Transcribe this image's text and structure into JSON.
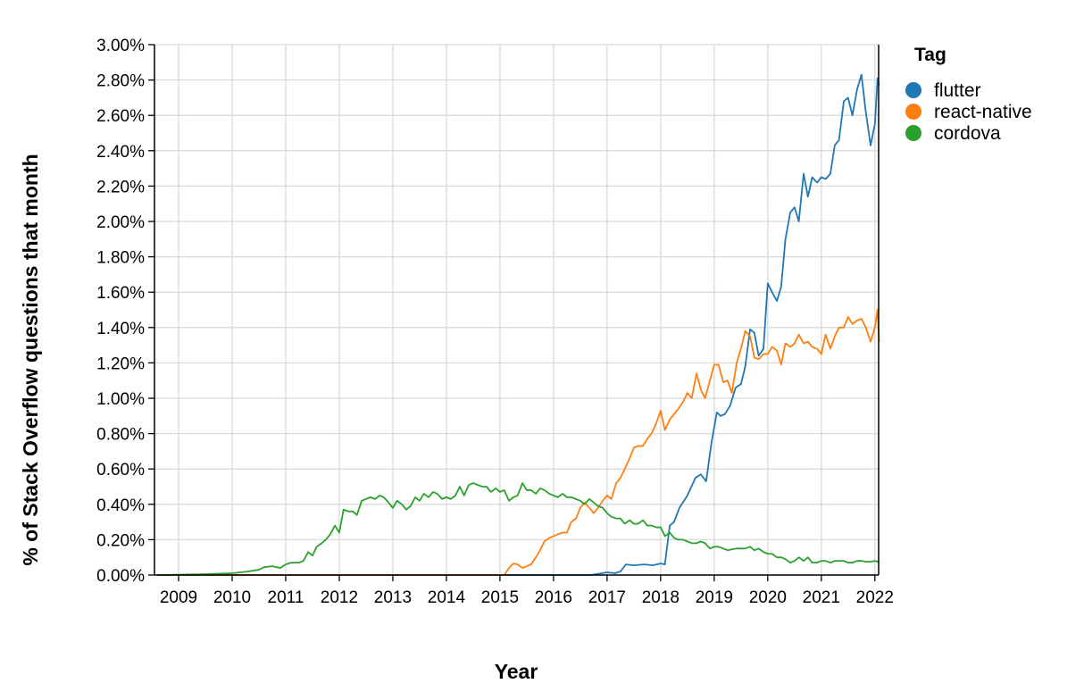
{
  "chart_data": {
    "type": "line",
    "title": "",
    "xlabel": "Year",
    "ylabel": "% of Stack Overflow questions that month",
    "xlim": [
      2008.55,
      2022.07
    ],
    "ylim": [
      0,
      3.0
    ],
    "x_ticks": [
      "2009",
      "2010",
      "2011",
      "2012",
      "2013",
      "2014",
      "2015",
      "2016",
      "2017",
      "2018",
      "2019",
      "2020",
      "2021",
      "2022"
    ],
    "y_ticks": [
      "0.00%",
      "0.20%",
      "0.40%",
      "0.60%",
      "0.80%",
      "1.00%",
      "1.20%",
      "1.40%",
      "1.60%",
      "1.80%",
      "2.00%",
      "2.20%",
      "2.40%",
      "2.60%",
      "2.80%",
      "3.00%"
    ],
    "grid": true,
    "legend": {
      "title": "Tag",
      "position": "right"
    },
    "series": [
      {
        "name": "flutter",
        "color": "#1f77b4",
        "points": [
          [
            2008.6,
            0.0
          ],
          [
            2016.7,
            0.0
          ],
          [
            2016.9,
            0.01
          ],
          [
            2017.0,
            0.015
          ],
          [
            2017.15,
            0.01
          ],
          [
            2017.25,
            0.02
          ],
          [
            2017.35,
            0.06
          ],
          [
            2017.5,
            0.055
          ],
          [
            2017.7,
            0.06
          ],
          [
            2017.85,
            0.055
          ],
          [
            2018.0,
            0.065
          ],
          [
            2018.08,
            0.06
          ],
          [
            2018.17,
            0.28
          ],
          [
            2018.25,
            0.3
          ],
          [
            2018.35,
            0.38
          ],
          [
            2018.5,
            0.45
          ],
          [
            2018.65,
            0.55
          ],
          [
            2018.75,
            0.57
          ],
          [
            2018.85,
            0.53
          ],
          [
            2018.95,
            0.75
          ],
          [
            2019.05,
            0.92
          ],
          [
            2019.12,
            0.9
          ],
          [
            2019.2,
            0.91
          ],
          [
            2019.3,
            0.96
          ],
          [
            2019.4,
            1.06
          ],
          [
            2019.5,
            1.08
          ],
          [
            2019.58,
            1.18
          ],
          [
            2019.67,
            1.39
          ],
          [
            2019.75,
            1.37
          ],
          [
            2019.83,
            1.24
          ],
          [
            2019.92,
            1.28
          ],
          [
            2020.0,
            1.65
          ],
          [
            2020.08,
            1.6
          ],
          [
            2020.17,
            1.55
          ],
          [
            2020.25,
            1.63
          ],
          [
            2020.33,
            1.9
          ],
          [
            2020.42,
            2.05
          ],
          [
            2020.5,
            2.08
          ],
          [
            2020.58,
            2.0
          ],
          [
            2020.67,
            2.27
          ],
          [
            2020.75,
            2.14
          ],
          [
            2020.83,
            2.25
          ],
          [
            2020.92,
            2.22
          ],
          [
            2021.0,
            2.25
          ],
          [
            2021.08,
            2.24
          ],
          [
            2021.17,
            2.27
          ],
          [
            2021.25,
            2.43
          ],
          [
            2021.33,
            2.46
          ],
          [
            2021.42,
            2.68
          ],
          [
            2021.5,
            2.7
          ],
          [
            2021.58,
            2.6
          ],
          [
            2021.67,
            2.75
          ],
          [
            2021.75,
            2.83
          ],
          [
            2021.83,
            2.62
          ],
          [
            2021.92,
            2.43
          ],
          [
            2022.0,
            2.55
          ],
          [
            2022.05,
            2.81
          ],
          [
            2022.08,
            2.77
          ]
        ]
      },
      {
        "name": "react-native",
        "color": "#ff7f0e",
        "points": [
          [
            2008.6,
            0.0
          ],
          [
            2015.08,
            0.0
          ],
          [
            2015.17,
            0.04
          ],
          [
            2015.25,
            0.065
          ],
          [
            2015.33,
            0.06
          ],
          [
            2015.42,
            0.04
          ],
          [
            2015.5,
            0.05
          ],
          [
            2015.58,
            0.06
          ],
          [
            2015.67,
            0.1
          ],
          [
            2015.75,
            0.14
          ],
          [
            2015.83,
            0.19
          ],
          [
            2015.92,
            0.21
          ],
          [
            2016.0,
            0.22
          ],
          [
            2016.08,
            0.23
          ],
          [
            2016.17,
            0.24
          ],
          [
            2016.25,
            0.24
          ],
          [
            2016.33,
            0.3
          ],
          [
            2016.42,
            0.32
          ],
          [
            2016.5,
            0.38
          ],
          [
            2016.58,
            0.41
          ],
          [
            2016.67,
            0.38
          ],
          [
            2016.75,
            0.35
          ],
          [
            2016.83,
            0.38
          ],
          [
            2016.92,
            0.42
          ],
          [
            2017.0,
            0.45
          ],
          [
            2017.08,
            0.43
          ],
          [
            2017.17,
            0.52
          ],
          [
            2017.25,
            0.55
          ],
          [
            2017.33,
            0.6
          ],
          [
            2017.42,
            0.66
          ],
          [
            2017.5,
            0.72
          ],
          [
            2017.58,
            0.73
          ],
          [
            2017.67,
            0.73
          ],
          [
            2017.75,
            0.77
          ],
          [
            2017.83,
            0.8
          ],
          [
            2017.92,
            0.86
          ],
          [
            2018.0,
            0.93
          ],
          [
            2018.08,
            0.82
          ],
          [
            2018.17,
            0.88
          ],
          [
            2018.25,
            0.91
          ],
          [
            2018.33,
            0.94
          ],
          [
            2018.42,
            0.98
          ],
          [
            2018.5,
            1.03
          ],
          [
            2018.58,
            1.0
          ],
          [
            2018.67,
            1.14
          ],
          [
            2018.75,
            1.05
          ],
          [
            2018.83,
            1.0
          ],
          [
            2018.92,
            1.1
          ],
          [
            2019.0,
            1.19
          ],
          [
            2019.08,
            1.19
          ],
          [
            2019.17,
            1.09
          ],
          [
            2019.25,
            1.1
          ],
          [
            2019.33,
            1.03
          ],
          [
            2019.42,
            1.2
          ],
          [
            2019.5,
            1.28
          ],
          [
            2019.58,
            1.38
          ],
          [
            2019.67,
            1.35
          ],
          [
            2019.75,
            1.23
          ],
          [
            2019.83,
            1.22
          ],
          [
            2019.92,
            1.25
          ],
          [
            2020.0,
            1.25
          ],
          [
            2020.08,
            1.29
          ],
          [
            2020.17,
            1.27
          ],
          [
            2020.25,
            1.19
          ],
          [
            2020.33,
            1.31
          ],
          [
            2020.42,
            1.29
          ],
          [
            2020.5,
            1.31
          ],
          [
            2020.58,
            1.36
          ],
          [
            2020.67,
            1.31
          ],
          [
            2020.75,
            1.32
          ],
          [
            2020.83,
            1.29
          ],
          [
            2020.92,
            1.28
          ],
          [
            2021.0,
            1.25
          ],
          [
            2021.08,
            1.36
          ],
          [
            2021.17,
            1.28
          ],
          [
            2021.25,
            1.35
          ],
          [
            2021.33,
            1.4
          ],
          [
            2021.42,
            1.4
          ],
          [
            2021.5,
            1.46
          ],
          [
            2021.58,
            1.42
          ],
          [
            2021.67,
            1.44
          ],
          [
            2021.75,
            1.45
          ],
          [
            2021.83,
            1.4
          ],
          [
            2021.92,
            1.32
          ],
          [
            2022.0,
            1.4
          ],
          [
            2022.05,
            1.5
          ],
          [
            2022.08,
            1.32
          ]
        ]
      },
      {
        "name": "cordova",
        "color": "#2ca02c",
        "points": [
          [
            2008.6,
            0.0
          ],
          [
            2009.5,
            0.005
          ],
          [
            2010.0,
            0.01
          ],
          [
            2010.3,
            0.02
          ],
          [
            2010.5,
            0.03
          ],
          [
            2010.6,
            0.045
          ],
          [
            2010.75,
            0.05
          ],
          [
            2010.9,
            0.04
          ],
          [
            2011.0,
            0.06
          ],
          [
            2011.1,
            0.07
          ],
          [
            2011.25,
            0.07
          ],
          [
            2011.33,
            0.08
          ],
          [
            2011.42,
            0.13
          ],
          [
            2011.5,
            0.11
          ],
          [
            2011.58,
            0.16
          ],
          [
            2011.67,
            0.18
          ],
          [
            2011.75,
            0.2
          ],
          [
            2011.83,
            0.23
          ],
          [
            2011.92,
            0.28
          ],
          [
            2012.0,
            0.24
          ],
          [
            2012.08,
            0.37
          ],
          [
            2012.17,
            0.36
          ],
          [
            2012.25,
            0.36
          ],
          [
            2012.33,
            0.34
          ],
          [
            2012.42,
            0.42
          ],
          [
            2012.5,
            0.43
          ],
          [
            2012.58,
            0.44
          ],
          [
            2012.67,
            0.43
          ],
          [
            2012.75,
            0.45
          ],
          [
            2012.83,
            0.44
          ],
          [
            2012.92,
            0.41
          ],
          [
            2013.0,
            0.38
          ],
          [
            2013.08,
            0.42
          ],
          [
            2013.17,
            0.4
          ],
          [
            2013.25,
            0.37
          ],
          [
            2013.33,
            0.39
          ],
          [
            2013.42,
            0.44
          ],
          [
            2013.5,
            0.42
          ],
          [
            2013.58,
            0.46
          ],
          [
            2013.67,
            0.44
          ],
          [
            2013.75,
            0.47
          ],
          [
            2013.83,
            0.46
          ],
          [
            2013.92,
            0.43
          ],
          [
            2014.0,
            0.44
          ],
          [
            2014.08,
            0.43
          ],
          [
            2014.17,
            0.45
          ],
          [
            2014.25,
            0.5
          ],
          [
            2014.33,
            0.45
          ],
          [
            2014.42,
            0.51
          ],
          [
            2014.5,
            0.52
          ],
          [
            2014.58,
            0.51
          ],
          [
            2014.67,
            0.5
          ],
          [
            2014.75,
            0.5
          ],
          [
            2014.83,
            0.47
          ],
          [
            2014.92,
            0.49
          ],
          [
            2015.0,
            0.47
          ],
          [
            2015.08,
            0.48
          ],
          [
            2015.17,
            0.42
          ],
          [
            2015.25,
            0.44
          ],
          [
            2015.33,
            0.45
          ],
          [
            2015.42,
            0.52
          ],
          [
            2015.5,
            0.48
          ],
          [
            2015.58,
            0.48
          ],
          [
            2015.67,
            0.46
          ],
          [
            2015.75,
            0.49
          ],
          [
            2015.83,
            0.48
          ],
          [
            2015.92,
            0.46
          ],
          [
            2016.0,
            0.45
          ],
          [
            2016.08,
            0.44
          ],
          [
            2016.17,
            0.46
          ],
          [
            2016.25,
            0.44
          ],
          [
            2016.33,
            0.44
          ],
          [
            2016.42,
            0.43
          ],
          [
            2016.5,
            0.42
          ],
          [
            2016.58,
            0.4
          ],
          [
            2016.67,
            0.43
          ],
          [
            2016.75,
            0.41
          ],
          [
            2016.83,
            0.39
          ],
          [
            2016.92,
            0.38
          ],
          [
            2017.0,
            0.35
          ],
          [
            2017.08,
            0.33
          ],
          [
            2017.17,
            0.32
          ],
          [
            2017.25,
            0.32
          ],
          [
            2017.33,
            0.29
          ],
          [
            2017.42,
            0.31
          ],
          [
            2017.5,
            0.29
          ],
          [
            2017.58,
            0.29
          ],
          [
            2017.67,
            0.31
          ],
          [
            2017.75,
            0.28
          ],
          [
            2017.83,
            0.28
          ],
          [
            2017.92,
            0.27
          ],
          [
            2018.0,
            0.27
          ],
          [
            2018.08,
            0.22
          ],
          [
            2018.17,
            0.24
          ],
          [
            2018.25,
            0.21
          ],
          [
            2018.33,
            0.2
          ],
          [
            2018.42,
            0.2
          ],
          [
            2018.5,
            0.19
          ],
          [
            2018.58,
            0.18
          ],
          [
            2018.67,
            0.18
          ],
          [
            2018.75,
            0.19
          ],
          [
            2018.83,
            0.18
          ],
          [
            2018.92,
            0.15
          ],
          [
            2019.0,
            0.16
          ],
          [
            2019.08,
            0.16
          ],
          [
            2019.17,
            0.15
          ],
          [
            2019.25,
            0.14
          ],
          [
            2019.33,
            0.145
          ],
          [
            2019.42,
            0.15
          ],
          [
            2019.5,
            0.15
          ],
          [
            2019.58,
            0.15
          ],
          [
            2019.67,
            0.16
          ],
          [
            2019.75,
            0.14
          ],
          [
            2019.83,
            0.15
          ],
          [
            2019.92,
            0.13
          ],
          [
            2020.0,
            0.12
          ],
          [
            2020.08,
            0.12
          ],
          [
            2020.17,
            0.1
          ],
          [
            2020.25,
            0.1
          ],
          [
            2020.33,
            0.09
          ],
          [
            2020.42,
            0.07
          ],
          [
            2020.5,
            0.08
          ],
          [
            2020.58,
            0.1
          ],
          [
            2020.67,
            0.08
          ],
          [
            2020.75,
            0.1
          ],
          [
            2020.83,
            0.07
          ],
          [
            2020.92,
            0.07
          ],
          [
            2021.0,
            0.08
          ],
          [
            2021.08,
            0.08
          ],
          [
            2021.17,
            0.07
          ],
          [
            2021.25,
            0.08
          ],
          [
            2021.33,
            0.08
          ],
          [
            2021.42,
            0.08
          ],
          [
            2021.5,
            0.07
          ],
          [
            2021.58,
            0.07
          ],
          [
            2021.67,
            0.08
          ],
          [
            2021.75,
            0.08
          ],
          [
            2021.83,
            0.075
          ],
          [
            2021.92,
            0.075
          ],
          [
            2022.0,
            0.08
          ],
          [
            2022.05,
            0.075
          ],
          [
            2022.08,
            0.08
          ]
        ]
      }
    ]
  }
}
